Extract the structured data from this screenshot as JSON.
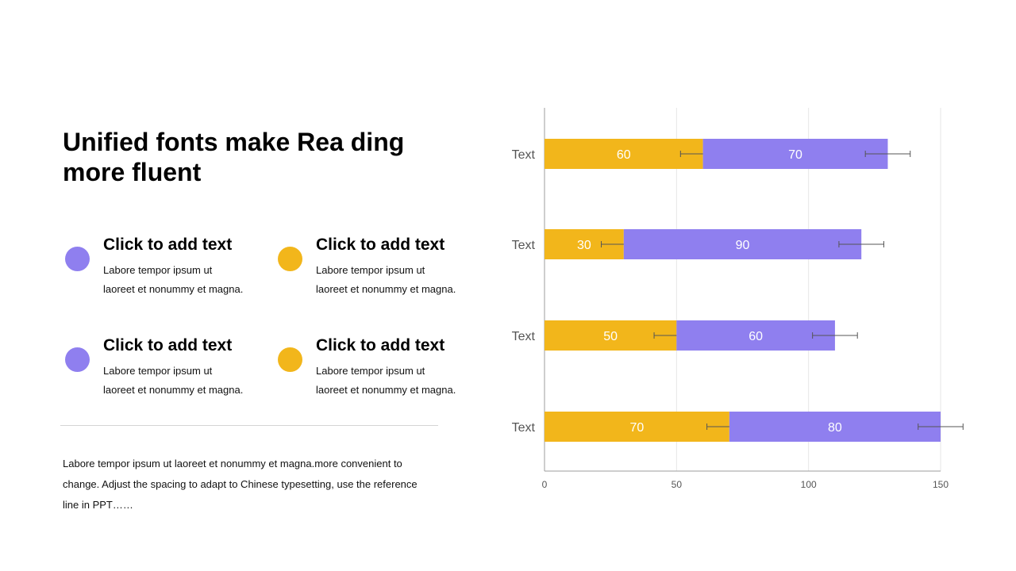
{
  "title": "Unified fonts make Rea ding more fluent",
  "colors": {
    "yellow": "#F2B61B",
    "purple": "#8F7FEF"
  },
  "items": [
    {
      "heading": "Click to add text",
      "body": "Labore tempor ipsum  ut\nlaoreet et nonummy  et magna.",
      "color": "purple"
    },
    {
      "heading": "Click to add text",
      "body": "Labore tempor ipsum  ut\nlaoreet et nonummy  et magna.",
      "color": "yellow"
    },
    {
      "heading": "Click to add text",
      "body": "Labore tempor ipsum  ut\nlaoreet et nonummy  et magna.",
      "color": "purple"
    },
    {
      "heading": "Click to add text",
      "body": "Labore tempor ipsum  ut\nlaoreet et nonummy  et magna.",
      "color": "yellow"
    }
  ],
  "paragraph": "Labore tempor ipsum  ut laoreet et nonummy  et magna.more  convenient to change. Adjust  the spacing to adapt to Chinese typesetting, use the reference line  in PPT……",
  "chart_data": {
    "type": "bar",
    "orientation": "horizontal",
    "stacked": true,
    "categories": [
      "Text",
      "Text",
      "Text",
      "Text"
    ],
    "series": [
      {
        "values": [
          60,
          30,
          50,
          70
        ],
        "color": "#F2B61B",
        "error": [
          8.5,
          8.5,
          8.5,
          8.5
        ]
      },
      {
        "values": [
          70,
          90,
          60,
          80
        ],
        "color": "#8F7FEF",
        "error": [
          8.5,
          8.5,
          8.5,
          8.5
        ]
      }
    ],
    "xlim": [
      0,
      150
    ],
    "xticks": [
      0,
      50,
      100,
      150
    ],
    "grid": "vertical",
    "legend": "none"
  }
}
